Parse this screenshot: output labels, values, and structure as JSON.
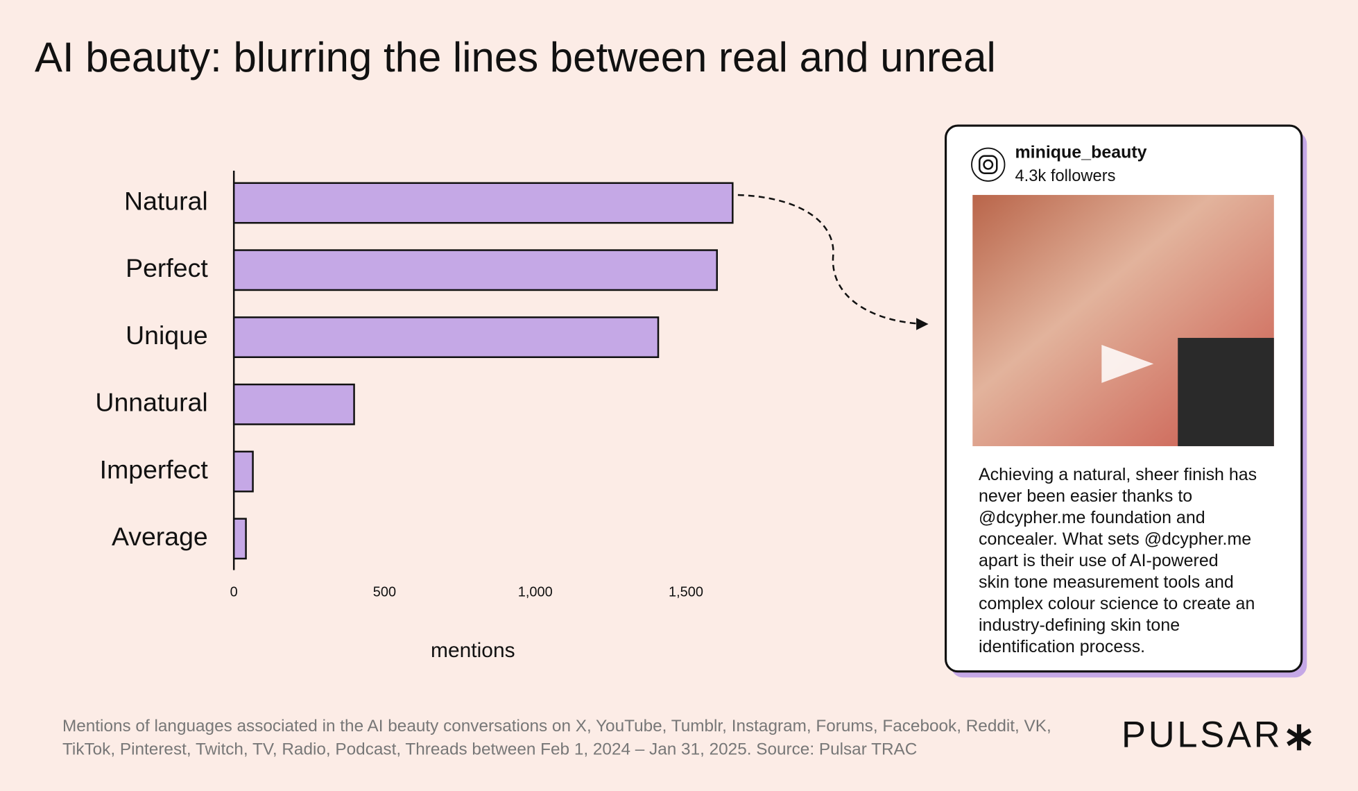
{
  "chart_data": {
    "type": "bar",
    "orientation": "horizontal",
    "title": "AI beauty: blurring the lines between real and unreal",
    "categories": [
      "Natural",
      "Perfect",
      "Unique",
      "Unnatural",
      "Imperfect",
      "Average"
    ],
    "values": [
      1655,
      1603,
      1408,
      399,
      63,
      40
    ],
    "color": "#c5a8e6",
    "xlim": [
      0,
      1700
    ],
    "xticks": [
      0,
      500,
      {
        "value": 1000,
        "label": "1,000"
      },
      {
        "value": 1500,
        "label": "1,500"
      }
    ],
    "xlabel": "mentions",
    "grid": false
  },
  "post": {
    "username": "minique_beauty",
    "followers": "4.3k followers",
    "caption": [
      "Achieving a natural, sheer finish has",
      "never been easier thanks to",
      "@dcypher.me foundation and",
      "concealer. What sets @dcypher.me",
      "apart is their use of AI-powered",
      "skin tone measurement tools and",
      "complex colour science to create an",
      "industry-defining skin tone",
      "identification process."
    ]
  },
  "footnote": [
    "Mentions of languages associated in the AI beauty conversations on X, YouTube, Tumblr, Instagram, Forums, Facebook, Reddit, VK,",
    "TikTok, Pinterest, Twitch, TV, Radio, Podcast, Threads between Feb 1,  2024 – Jan  31, 2025. Source: Pulsar TRAC"
  ],
  "logo": "PULSAR"
}
